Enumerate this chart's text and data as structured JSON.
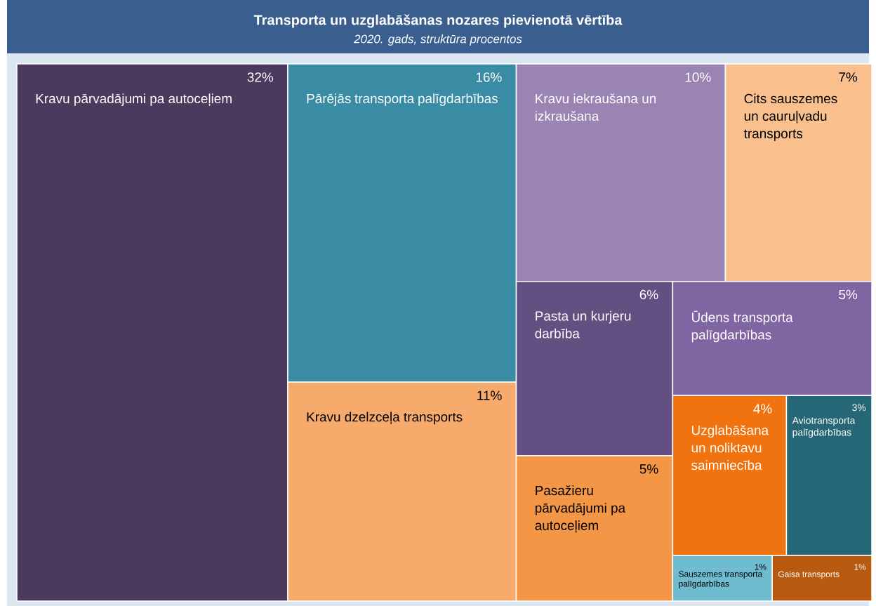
{
  "chart_data": {
    "type": "other",
    "title": "Transporta un uzglabāšanas nozares pievienotā vērtība",
    "subtitle": "2020. gads, struktūra procentos",
    "categories": [
      "Kravu pārvadājumi pa autoceļiem",
      "Pārējās transporta palīgdarbības",
      "Kravu dzelzceļa transports",
      "Kravu iekraušana un izkraušana",
      "Cits sauszemes un cauruļvadu transports",
      "Pasta un kurjeru darbība",
      "Pasažieru pārvadājumi pa autoceļiem",
      "Ūdens transporta palīgdarbības",
      "Uzglabāšana un noliktavu saimniecība",
      "Aviotransporta palīgdarbības",
      "Sauszemes transporta palīgdarbības",
      "Gaisa transports"
    ],
    "values": [
      32,
      16,
      11,
      10,
      7,
      6,
      5,
      5,
      4,
      3,
      1,
      1
    ],
    "value_labels": [
      "32%",
      "16%",
      "11%",
      "10%",
      "7%",
      "6%",
      "5%",
      "5%",
      "4%",
      "3%",
      "1%",
      "1%"
    ],
    "colors": [
      "#4b3a5e",
      "#3a8ca5",
      "#f6ab6c",
      "#9a84b4",
      "#f9c08e",
      "#644f82",
      "#f39646",
      "#8065a3",
      "#f0730f",
      "#266777",
      "#6fbcd0",
      "#b85a0f"
    ]
  }
}
